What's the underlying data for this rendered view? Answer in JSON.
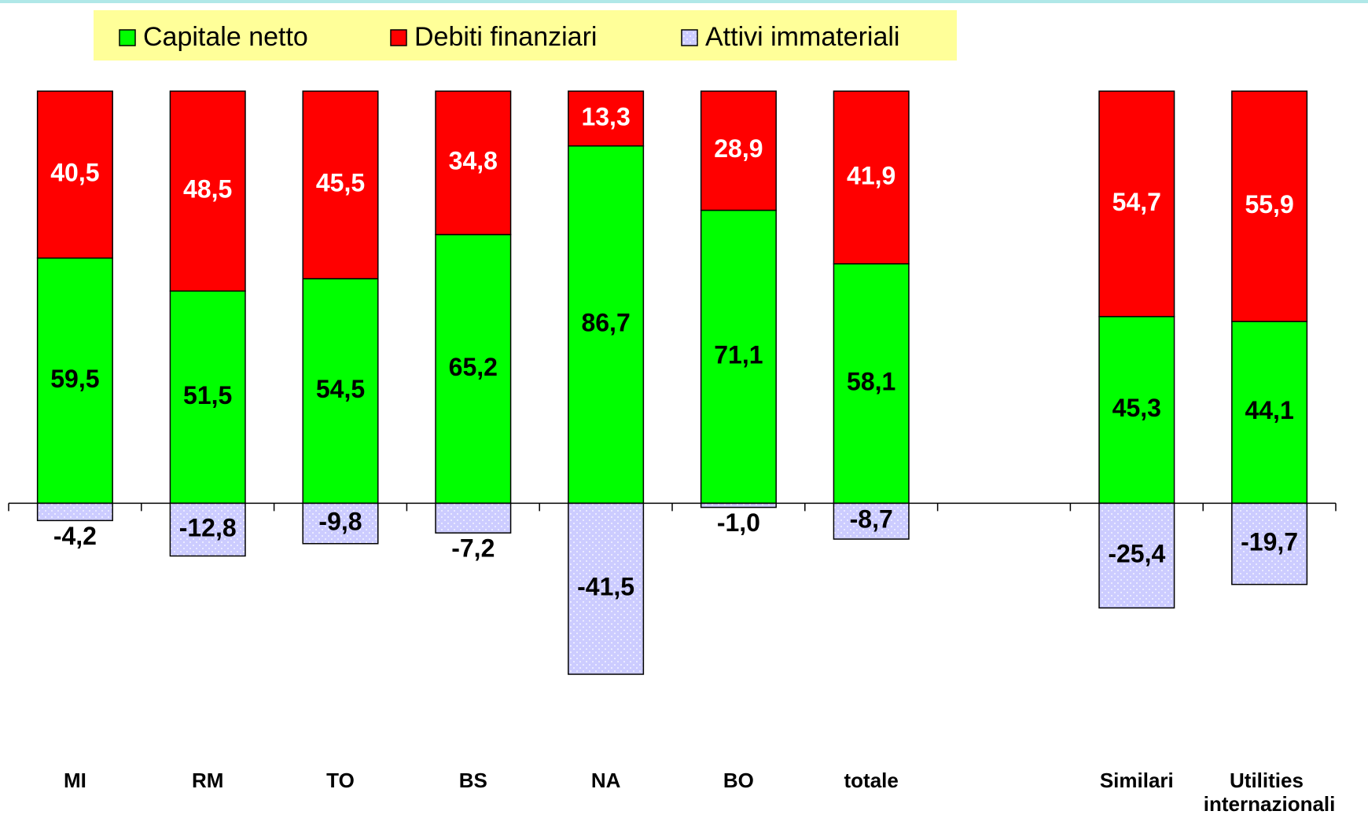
{
  "chart_data": {
    "type": "stacked_bar",
    "categories": [
      "MI",
      "RM",
      "TO",
      "BS",
      "NA",
      "BO",
      "totale",
      null,
      "Similari",
      "Utilities internazionali"
    ],
    "series": [
      {
        "name": "Capitale netto",
        "color": "#00ff00",
        "values": [
          59.5,
          51.5,
          54.5,
          65.2,
          86.7,
          71.1,
          58.1,
          null,
          45.3,
          44.1
        ],
        "value_labels": [
          "59,5",
          "51,5",
          "54,5",
          "65,2",
          "86,7",
          "71,1",
          "58,1",
          null,
          "45,3",
          "44,1"
        ]
      },
      {
        "name": "Debiti finanziari",
        "color": "#ff0000",
        "values": [
          40.5,
          48.5,
          45.5,
          34.8,
          13.3,
          28.9,
          41.9,
          null,
          54.7,
          55.9
        ],
        "value_labels": [
          "40,5",
          "48,5",
          "45,5",
          "34,8",
          "13,3",
          "28,9",
          "41,9",
          null,
          "54,7",
          "55,9"
        ]
      },
      {
        "name": "Attivi immateriali",
        "color": "#ccccff",
        "values": [
          -4.2,
          -12.8,
          -9.8,
          -7.2,
          -41.5,
          -1.0,
          -8.7,
          null,
          -25.4,
          -19.7
        ],
        "value_labels": [
          "-4,2",
          "-12,8",
          "-9,8",
          "-7,2",
          "-41,5",
          "-1,0",
          "-8,7",
          null,
          "-25,4",
          "-19,7"
        ]
      }
    ],
    "ylim": [
      -60,
      100
    ],
    "legend": "top"
  }
}
